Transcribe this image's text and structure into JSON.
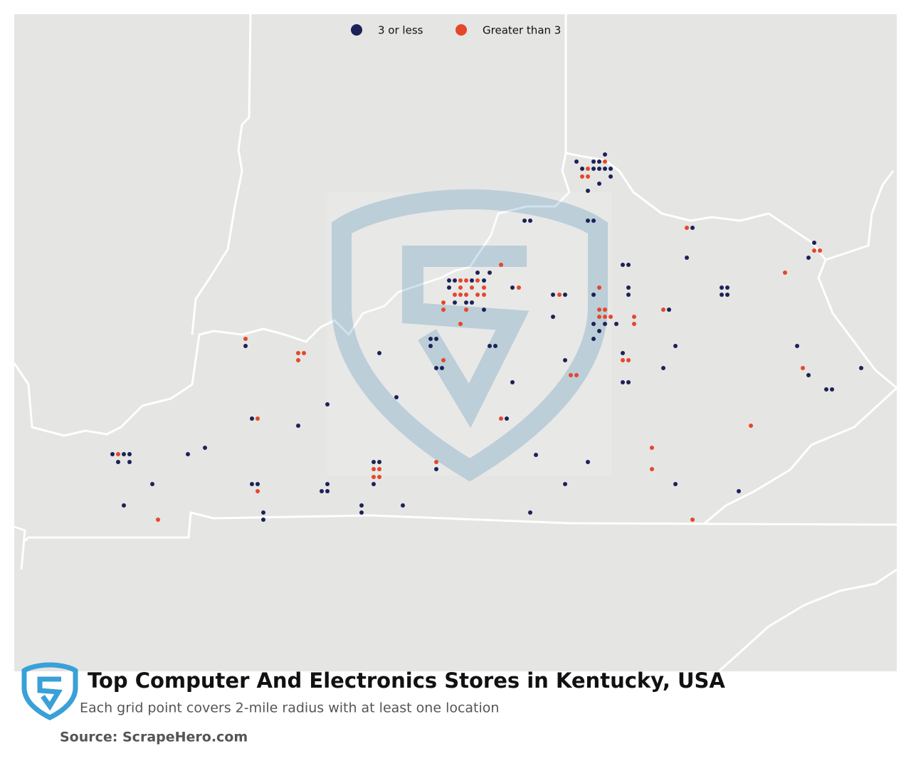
{
  "legend": [
    {
      "name": "3 or less",
      "color": "#1b2259"
    },
    {
      "name": "Greater than 3",
      "color": "#e5472a"
    }
  ],
  "title": "Top Computer And Electronics Stores in Kentucky, USA",
  "subtitle": "Each grid point covers 2-mile radius with at least one location",
  "source": "Source: ScrapeHero.com"
}
